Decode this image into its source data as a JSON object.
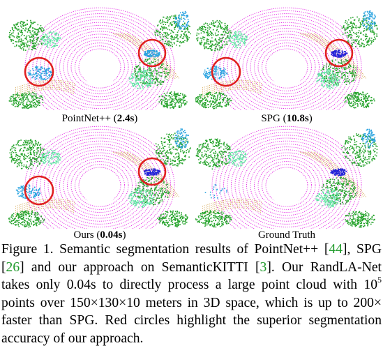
{
  "panels": [
    {
      "name": "PointNet++",
      "time": "2.4s",
      "circles": 2
    },
    {
      "name": "SPG",
      "time": "10.8s",
      "circles": 2
    },
    {
      "name": "Ours",
      "time": "0.04s",
      "circles": 2
    },
    {
      "name": "Ground Truth",
      "time": "",
      "circles": 0
    }
  ],
  "caption": {
    "lead": "Figure 1. Semantic segmentation results of PointNet++ [",
    "cite1": "44",
    "p2": "], SPG [",
    "cite2": "26",
    "p3": "] and our approach on SemanticKITTI [",
    "cite3": "3",
    "p4": "].  Our RandLA-Net takes only 0.04s to directly process a large point cloud with 10",
    "sup1": "5",
    "p5": " points over 150×130×10 meters in 3D space, which is up to 200× faster than SPG. Red circles highlight the superior segmentation accuracy of our approach."
  },
  "colors": {
    "road": "#e632e6",
    "sidewalk": "#d2a04a",
    "vegetation": "#25a32b",
    "terrain": "#5fe3a3",
    "building": "#2aa3e0",
    "car": "#2323d8",
    "circle": "#e02020",
    "citation": "#1f9a2a"
  }
}
